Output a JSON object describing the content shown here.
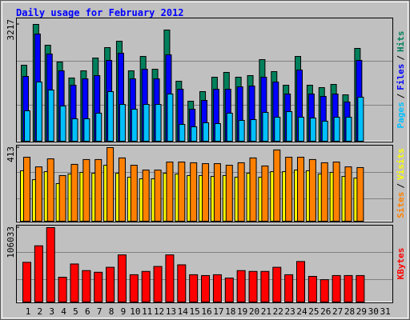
{
  "title": "Daily usage for February 2012",
  "legend_separator": "/",
  "chart_data": [
    {
      "type": "bar",
      "series": [
        {
          "name": "Hits",
          "color": "#00805c",
          "values": [
            2093,
            3217,
            2644,
            2181,
            1741,
            1939,
            2291,
            2578,
            2754,
            1939,
            2335,
            1983,
            3063,
            1652,
            1102,
            1366,
            1763,
            1895,
            1763,
            1807,
            2247,
            1917,
            1542,
            2335,
            1542,
            1476,
            1564,
            1278,
            2556,
            null,
            null
          ]
        },
        {
          "name": "Files",
          "color": "#0000ff",
          "values": [
            1785,
            2952,
            2401,
            1939,
            1542,
            1718,
            1807,
            2225,
            2424,
            1718,
            1983,
            1718,
            2380,
            1432,
            881,
            1124,
            1432,
            1432,
            1498,
            1520,
            1763,
            1630,
            1300,
            1961,
            1300,
            1234,
            1300,
            1080,
            2225,
            null,
            null
          ]
        },
        {
          "name": "Pages",
          "color": "#00c0ff",
          "values": [
            837,
            1630,
            1410,
            969,
            617,
            617,
            771,
            1366,
            1013,
            881,
            1013,
            1013,
            1300,
            463,
            397,
            507,
            485,
            771,
            573,
            595,
            793,
            661,
            815,
            661,
            639,
            551,
            661,
            661,
            1212,
            null,
            null
          ]
        }
      ],
      "ylim": [
        0,
        3217
      ],
      "yticks": [
        3217
      ]
    },
    {
      "type": "bar",
      "series": [
        {
          "name": "Visits",
          "color": "#ffff00",
          "values": [
            283,
            233,
            278,
            211,
            265,
            274,
            269,
            314,
            269,
            247,
            238,
            238,
            269,
            265,
            256,
            256,
            251,
            256,
            247,
            269,
            247,
            278,
            278,
            287,
            283,
            265,
            274,
            251,
            242,
            null,
            null
          ]
        },
        {
          "name": "Sites",
          "color": "#ff8000",
          "values": [
            359,
            305,
            350,
            256,
            319,
            346,
            346,
            413,
            355,
            314,
            287,
            287,
            332,
            332,
            328,
            323,
            323,
            314,
            328,
            355,
            310,
            400,
            359,
            359,
            346,
            328,
            332,
            305,
            301,
            null,
            null
          ]
        }
      ],
      "ylim": [
        0,
        413
      ],
      "yticks": [
        413
      ]
    },
    {
      "type": "bar",
      "categories": [
        "1",
        "2",
        "3",
        "4",
        "5",
        "6",
        "7",
        "8",
        "9",
        "10",
        "11",
        "12",
        "13",
        "14",
        "15",
        "16",
        "17",
        "18",
        "19",
        "20",
        "21",
        "22",
        "23",
        "24",
        "25",
        "26",
        "27",
        "28",
        "29",
        "30",
        "31"
      ],
      "category_colors": [
        "#000000",
        "#000000",
        "#000000",
        "#00805c",
        "#00805c",
        "#000000",
        "#000000",
        "#000000",
        "#000000",
        "#000000",
        "#00805c",
        "#00805c",
        "#000000",
        "#000000",
        "#000000",
        "#000000",
        "#000000",
        "#00805c",
        "#00805c",
        "#000000",
        "#000000",
        "#000000",
        "#000000",
        "#000000",
        "#00805c",
        "#00805c",
        "#000000",
        "#000000",
        "#000000",
        "#000000",
        "#000000"
      ],
      "series": [
        {
          "name": "KBytes",
          "color": "#ff0000",
          "values": [
            56556,
            80121,
            106033,
            35348,
            54199,
            44773,
            42415,
            49485,
            67157,
            38879,
            43593,
            50661,
            67157,
            53020,
            38879,
            37702,
            38879,
            34167,
            44773,
            43593,
            43593,
            49485,
            38879,
            57734,
            36525,
            31811,
            37702,
            37702,
            37702,
            null,
            null
          ]
        }
      ],
      "ylim": [
        0,
        106033
      ],
      "yticks": [
        106033
      ]
    }
  ]
}
